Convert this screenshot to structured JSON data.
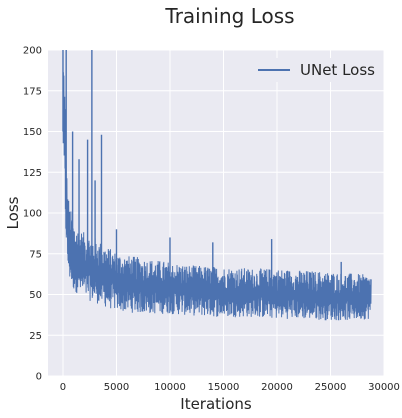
{
  "chart_data": {
    "type": "line",
    "title": "Training Loss",
    "xlabel": "Iterations",
    "ylabel": "Loss",
    "xlim": [
      -1400,
      30000
    ],
    "ylim": [
      0,
      200
    ],
    "xticks": [
      0,
      5000,
      10000,
      15000,
      20000,
      25000,
      30000
    ],
    "yticks": [
      0,
      25,
      50,
      75,
      100,
      125,
      150,
      175,
      200
    ],
    "grid": true,
    "legend_position": "top-right",
    "series": [
      {
        "name": "UNet Loss",
        "color": "#4c72b0",
        "x_end": 28800,
        "envelope": {
          "x": [
            0,
            100,
            200,
            300,
            400,
            600,
            800,
            1000,
            1500,
            2000,
            3000,
            4000,
            5000,
            6000,
            8000,
            10000,
            12000,
            15000,
            18000,
            20000,
            22000,
            25000,
            27000,
            28800
          ],
          "upper": [
            200,
            195,
            175,
            140,
            118,
            105,
            100,
            95,
            90,
            88,
            85,
            80,
            76,
            74,
            72,
            70,
            68,
            67,
            66,
            66,
            65,
            64,
            63,
            62
          ],
          "lower": [
            140,
            110,
            95,
            80,
            65,
            58,
            55,
            52,
            50,
            47,
            45,
            42,
            40,
            39,
            38,
            38,
            37,
            36,
            36,
            35,
            35,
            34,
            34,
            35
          ]
        },
        "spikes": [
          {
            "x": 0,
            "y": 200
          },
          {
            "x": 300,
            "y": 200
          },
          {
            "x": 900,
            "y": 150
          },
          {
            "x": 1500,
            "y": 133
          },
          {
            "x": 2300,
            "y": 145
          },
          {
            "x": 2700,
            "y": 200
          },
          {
            "x": 3000,
            "y": 120
          },
          {
            "x": 3600,
            "y": 148
          },
          {
            "x": 5000,
            "y": 90
          },
          {
            "x": 10000,
            "y": 85
          },
          {
            "x": 14000,
            "y": 82
          },
          {
            "x": 19500,
            "y": 84
          },
          {
            "x": 26000,
            "y": 70
          }
        ]
      }
    ]
  }
}
